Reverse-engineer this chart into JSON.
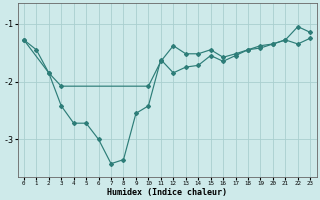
{
  "xlabel": "Humidex (Indice chaleur)",
  "xlim": [
    -0.5,
    23.5
  ],
  "ylim": [
    -3.65,
    -0.65
  ],
  "yticks": [
    -3,
    -2,
    -1
  ],
  "xticks": [
    0,
    1,
    2,
    3,
    4,
    5,
    6,
    7,
    8,
    9,
    10,
    11,
    12,
    13,
    14,
    15,
    16,
    17,
    18,
    19,
    20,
    21,
    22,
    23
  ],
  "bg_color": "#ceeaea",
  "line_color": "#2d7d78",
  "grid_color": "#aacfcf",
  "line1_x": [
    0,
    2,
    3,
    10,
    11,
    12,
    13,
    14,
    15,
    16,
    17,
    18,
    19,
    20,
    21,
    22,
    23
  ],
  "line1_y": [
    -1.28,
    -1.85,
    -2.08,
    -2.08,
    -1.65,
    -1.38,
    -1.52,
    -1.52,
    -1.45,
    -1.58,
    -1.52,
    -1.45,
    -1.38,
    -1.35,
    -1.28,
    -1.05,
    -1.15
  ],
  "line2_x": [
    0,
    1,
    2,
    3,
    4,
    5,
    6,
    7,
    8,
    9,
    10,
    11,
    12,
    13,
    14,
    15,
    16,
    17,
    18,
    19,
    20,
    21,
    22,
    23
  ],
  "line2_y": [
    -1.28,
    -1.45,
    -1.85,
    -2.42,
    -2.72,
    -2.72,
    -3.0,
    -3.42,
    -3.35,
    -2.55,
    -2.42,
    -1.62,
    -1.85,
    -1.75,
    -1.72,
    -1.55,
    -1.65,
    -1.55,
    -1.45,
    -1.42,
    -1.35,
    -1.28,
    -1.35,
    -1.25
  ]
}
